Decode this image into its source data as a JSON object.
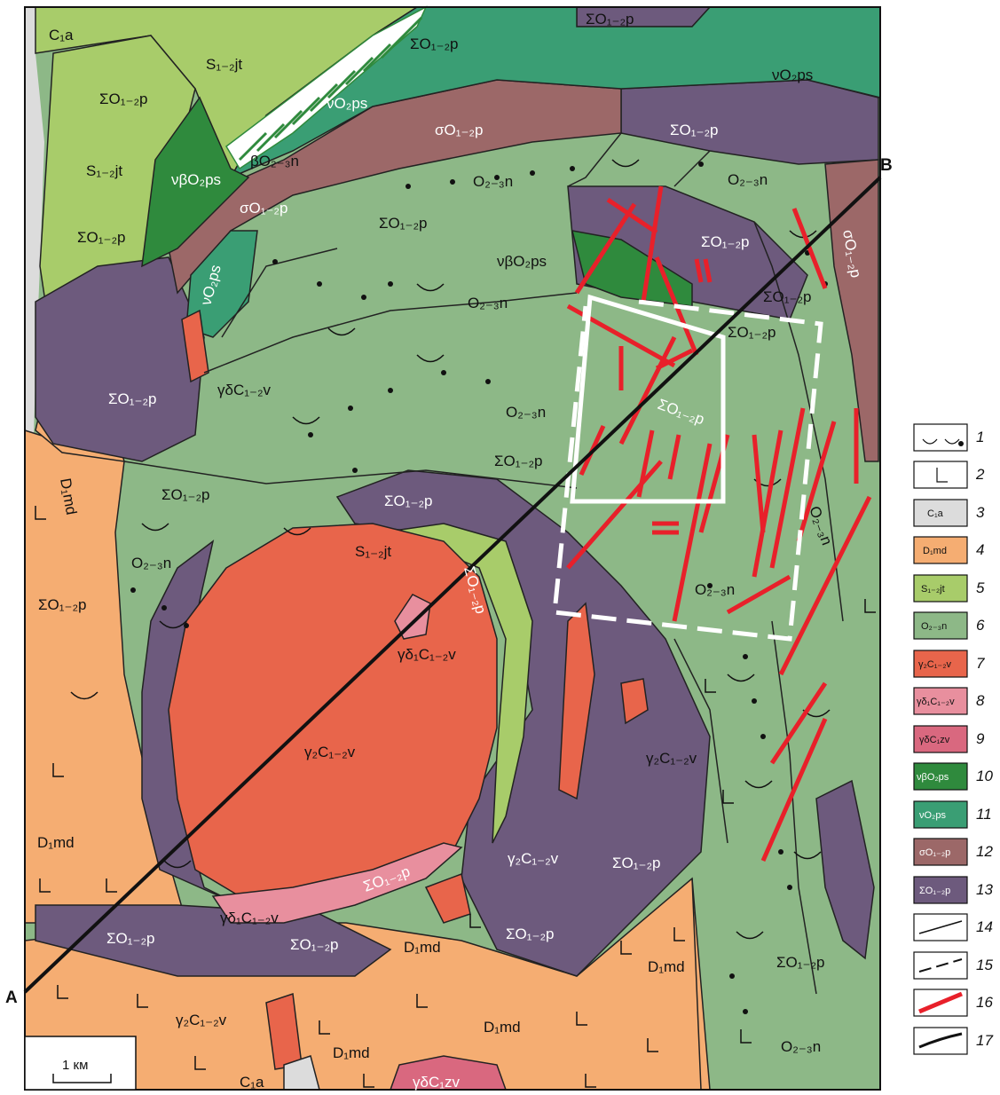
{
  "colors": {
    "D1md": "#f5ad72",
    "S12jt": "#a8cc6a",
    "O23n": "#8db887",
    "g2C": "#e8654b",
    "gd1C": "#e88f9e",
    "gdC1zv": "#d9687f",
    "nbO2ps": "#2f8a3d",
    "nO2ps": "#3a9e74",
    "sO12p": "#9c6868",
    "SO12p": "#6d5a7d",
    "C1a": "#dcdcdc",
    "fault_red": "#e8202a",
    "study_box": "#ffffff"
  },
  "profile": {
    "start_label": "А",
    "end_label": "В"
  },
  "scale_bar": {
    "label": "1 км"
  },
  "labels": {
    "C1a_top": "C₁a",
    "S12jt_a": "S₁₋₂jt",
    "S12jt_b": "S₁₋₂jt",
    "S12jt_c": "S₁₋₂jt",
    "SO_1": "ΣO₁₋₂p",
    "SO_2": "ΣO₁₋₂p",
    "SO_3": "ΣO₁₋₂p",
    "SO_4": "ΣO₁₋₂p",
    "SO_5": "ΣO₁₋₂p",
    "SO_6": "ΣO₁₋₂p",
    "SO_7": "ΣO₁₋₂p",
    "SO_8": "ΣO₁₋₂p",
    "SO_9": "ΣO₁₋₂p",
    "SO_10": "ΣO₁₋₂p",
    "SO_11": "ΣO₁₋₂p",
    "SO_12": "ΣO₁₋₂p",
    "SO_13": "ΣO₁₋₂p",
    "SO_14": "ΣO₁₋₂p",
    "SO_15": "ΣO₁₋₂p",
    "SO_16": "ΣO₁₋₂p",
    "SO_17": "ΣO₁₋₂p",
    "SO_18": "ΣO₁₋₂p",
    "SO_19": "ΣO₁₋₂p",
    "SO_20": "ΣO₁₋₂p",
    "SO_21": "ΣO₁₋₂p",
    "SO_top": "ΣO₁₋₂p",
    "sO_1": "σO₁₋₂p",
    "sO_2": "σO₁₋₂p",
    "sO_3": "σO₁₋₂p",
    "nO_1": "νO₂ps",
    "nO_2": "νO₂ps",
    "nO_3": "νO₂ps",
    "nbO_1": "νβO₂ps",
    "nbO_2": "νβO₂ps",
    "bO": "βO₂₋₃n",
    "O23n_1": "O₂₋₃n",
    "O23n_2": "O₂₋₃n",
    "O23n_3": "O₂₋₃n",
    "O23n_4": "O₂₋₃n",
    "O23n_5": "O₂₋₃n",
    "O23n_6": "O₂₋₃n",
    "O23n_7": "O₂₋₃n",
    "O23n_8": "O₂₋₃n",
    "O23n_9": "O₂₋₃n",
    "O23n_10": "O₂₋₃n",
    "gdC12v": "γδC₁₋₂v",
    "gd1C_1": "γδ₁C₁₋₂v",
    "gd1C_2": "γδ₁C₁₋₂v",
    "g2C_1": "γ₂C₁₋₂v",
    "g2C_2": "γ₂C₁₋₂v",
    "g2C_3": "γ₂C₁₋₂v",
    "g2C_4": "γ₂C₁₋₂v",
    "D1md_1": "D₁md",
    "D1md_2": "D₁md",
    "D1md_3": "D₁md",
    "D1md_4": "D₁md",
    "D1md_5": "D₁md",
    "D1md_6": "D₁md",
    "C1a_bottom": "C₁a",
    "gdC1zv": "γδC₁zv"
  },
  "legend": [
    {
      "num": "1",
      "text": ""
    },
    {
      "num": "2",
      "text": ""
    },
    {
      "num": "3",
      "text": "C₁a"
    },
    {
      "num": "4",
      "text": "D₁md"
    },
    {
      "num": "5",
      "text": "S₁₋₂jt"
    },
    {
      "num": "6",
      "text": "O₂₋₃n"
    },
    {
      "num": "7",
      "text": "γ₂C₁₋₂v"
    },
    {
      "num": "8",
      "text": "γδ₁C₁₋₂v"
    },
    {
      "num": "9",
      "text": "γδC₁zv"
    },
    {
      "num": "10",
      "text": "νβO₂ps"
    },
    {
      "num": "11",
      "text": "νO₂ps"
    },
    {
      "num": "12",
      "text": "σO₁₋₂p"
    },
    {
      "num": "13",
      "text": "ΣO₁₋₂p"
    },
    {
      "num": "14",
      "text": ""
    },
    {
      "num": "15",
      "text": ""
    },
    {
      "num": "16",
      "text": ""
    },
    {
      "num": "17",
      "text": ""
    }
  ]
}
